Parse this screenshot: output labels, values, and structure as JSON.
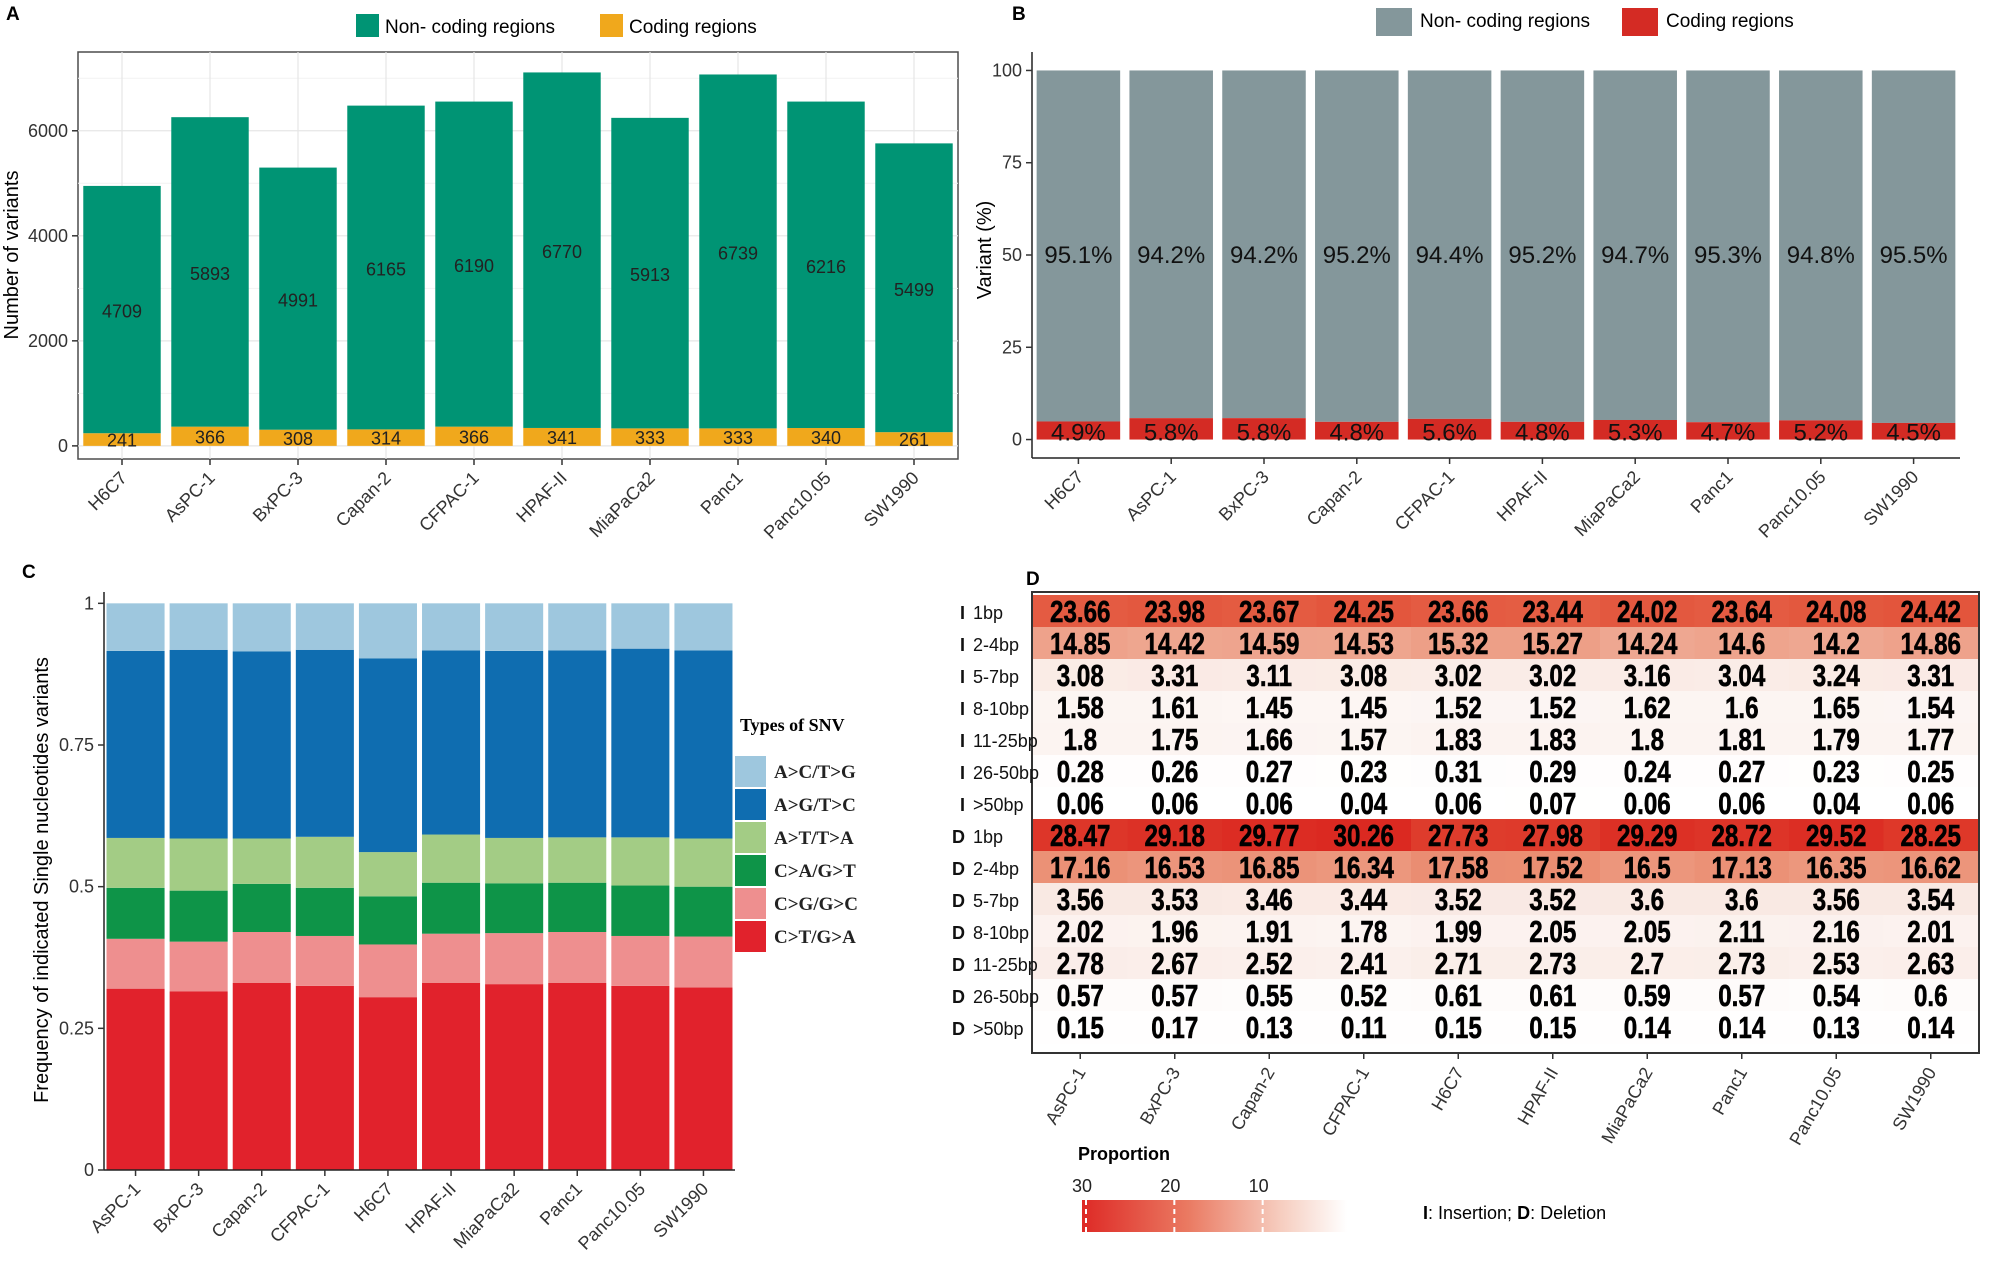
{
  "colors": {
    "noncoding_a": "#009474",
    "coding_a": "#F0A81C",
    "noncoding_b": "#84979B",
    "coding_b": "#D42B24",
    "snv": [
      "#9EC7DE",
      "#0F6DB0",
      "#A3CC85",
      "#0E9448",
      "#EE8F8F",
      "#E1222C"
    ]
  },
  "chart_data": [
    {
      "panel": "A",
      "type": "bar",
      "stacked": true,
      "categories": [
        "H6C7",
        "AsPC-1",
        "BxPC-3",
        "Capan-2",
        "CFPAC-1",
        "HPAF-II",
        "MiaPaCa2",
        "Panc1",
        "Panc10.05",
        "SW1990"
      ],
      "series": [
        {
          "name": "Coding regions",
          "values": [
            241,
            366,
            308,
            314,
            366,
            341,
            333,
            333,
            340,
            261
          ]
        },
        {
          "name": "Non- coding regions",
          "values": [
            4709,
            5893,
            4991,
            6165,
            6190,
            6770,
            5913,
            6739,
            6216,
            5499
          ]
        }
      ],
      "legend": [
        "Non- coding regions",
        "Coding regions"
      ],
      "ylabel": "Number of variants",
      "yticks": [
        0,
        2000,
        4000,
        6000
      ],
      "ylim": [
        -250,
        7500
      ],
      "grid": true,
      "legend_position": "top"
    },
    {
      "panel": "B",
      "type": "bar",
      "stacked": true,
      "percent": true,
      "categories": [
        "H6C7",
        "AsPC-1",
        "BxPC-3",
        "Capan-2",
        "CFPAC-1",
        "HPAF-II",
        "MiaPaCa2",
        "Panc1",
        "Panc10.05",
        "SW1990"
      ],
      "series": [
        {
          "name": "Coding regions",
          "values": [
            4.9,
            5.8,
            5.8,
            4.8,
            5.6,
            4.8,
            5.3,
            4.7,
            5.2,
            4.5
          ]
        },
        {
          "name": "Non- coding regions",
          "values": [
            95.1,
            94.2,
            94.2,
            95.2,
            94.4,
            95.2,
            94.7,
            95.3,
            94.8,
            95.5
          ]
        }
      ],
      "labels_noncoding": [
        "95.1%",
        "94.2%",
        "94.2%",
        "95.2%",
        "94.4%",
        "95.2%",
        "94.7%",
        "95.3%",
        "94.8%",
        "95.5%"
      ],
      "labels_coding": [
        "4.9%",
        "5.8%",
        "5.8%",
        "4.8%",
        "5.6%",
        "4.8%",
        "5.3%",
        "4.7%",
        "5.2%",
        "4.5%"
      ],
      "legend": [
        "Non- coding regions",
        "Coding regions"
      ],
      "ylabel": "Variant (%)",
      "yticks": [
        0,
        25,
        50,
        75,
        100
      ],
      "ylim": [
        -5,
        105
      ],
      "legend_position": "top"
    },
    {
      "panel": "C",
      "type": "bar",
      "stacked": true,
      "categories": [
        "AsPC-1",
        "BxPC-3",
        "Capan-2",
        "CFPAC-1",
        "H6C7",
        "HPAF-II",
        "MiaPaCa2",
        "Panc1",
        "Panc10.05",
        "SW1990"
      ],
      "series": [
        {
          "name": "C>T/G>A",
          "values": [
            0.32,
            0.315,
            0.33,
            0.325,
            0.305,
            0.33,
            0.328,
            0.33,
            0.325,
            0.322
          ]
        },
        {
          "name": "C>G/G>C",
          "values": [
            0.088,
            0.088,
            0.09,
            0.088,
            0.093,
            0.087,
            0.09,
            0.09,
            0.088,
            0.09
          ]
        },
        {
          "name": "C>A/G>T",
          "values": [
            0.09,
            0.09,
            0.085,
            0.085,
            0.085,
            0.09,
            0.088,
            0.087,
            0.089,
            0.088
          ]
        },
        {
          "name": "A>T/T>A",
          "values": [
            0.088,
            0.092,
            0.08,
            0.09,
            0.078,
            0.085,
            0.08,
            0.08,
            0.085,
            0.085
          ]
        },
        {
          "name": "A>G/T>C",
          "values": [
            0.33,
            0.333,
            0.33,
            0.33,
            0.342,
            0.325,
            0.33,
            0.33,
            0.333,
            0.332
          ]
        },
        {
          "name": "A>C/T>G",
          "values": [
            0.084,
            0.082,
            0.085,
            0.082,
            0.097,
            0.083,
            0.084,
            0.083,
            0.08,
            0.083
          ]
        }
      ],
      "legend_title": "Types of SNV",
      "legend": [
        "A>C/T>G",
        "A>G/T>C",
        "A>T/T>A",
        "C>A/G>T",
        "C>G/G>C",
        "C>T/G>A"
      ],
      "ylabel": "Frequency of indicated Single nucleotides variants",
      "yticks": [
        "0",
        "0.25",
        "0.5",
        "0.75",
        "1"
      ],
      "ylim": [
        0,
        1.02
      ],
      "legend_position": "right"
    },
    {
      "panel": "D",
      "type": "heatmap",
      "columns": [
        "AsPC-1",
        "BxPC-3",
        "Capan-2",
        "CFPAC-1",
        "H6C7",
        "HPAF-II",
        "MiaPaCa2",
        "Panc1",
        "Panc10.05",
        "SW1990"
      ],
      "row_types": [
        "I",
        "I",
        "I",
        "I",
        "I",
        "I",
        "I",
        "D",
        "D",
        "D",
        "D",
        "D",
        "D",
        "D"
      ],
      "row_sizes": [
        "1bp",
        "2-4bp",
        "5-7bp",
        "8-10bp",
        "11-25bp",
        "26-50bp",
        ">50bp",
        "1bp",
        "2-4bp",
        "5-7bp",
        "8-10bp",
        "11-25bp",
        "26-50bp",
        ">50bp"
      ],
      "values": [
        [
          23.66,
          23.98,
          23.67,
          24.25,
          23.66,
          23.44,
          24.02,
          23.64,
          24.08,
          24.42
        ],
        [
          14.85,
          14.42,
          14.59,
          14.53,
          15.32,
          15.27,
          14.24,
          14.6,
          14.2,
          14.86
        ],
        [
          3.08,
          3.31,
          3.11,
          3.08,
          3.02,
          3.02,
          3.16,
          3.04,
          3.24,
          3.31
        ],
        [
          1.58,
          1.61,
          1.45,
          1.45,
          1.52,
          1.52,
          1.62,
          1.6,
          1.65,
          1.54
        ],
        [
          1.8,
          1.75,
          1.66,
          1.57,
          1.83,
          1.83,
          1.8,
          1.81,
          1.79,
          1.77
        ],
        [
          0.28,
          0.26,
          0.27,
          0.23,
          0.31,
          0.29,
          0.24,
          0.27,
          0.23,
          0.25
        ],
        [
          0.06,
          0.06,
          0.06,
          0.04,
          0.06,
          0.07,
          0.06,
          0.06,
          0.04,
          0.06
        ],
        [
          28.47,
          29.18,
          29.77,
          30.26,
          27.73,
          27.98,
          29.29,
          28.72,
          29.52,
          28.25
        ],
        [
          17.16,
          16.53,
          16.85,
          16.34,
          17.58,
          17.52,
          16.5,
          17.13,
          16.35,
          16.62
        ],
        [
          3.56,
          3.53,
          3.46,
          3.44,
          3.52,
          3.52,
          3.6,
          3.6,
          3.56,
          3.54
        ],
        [
          2.02,
          1.96,
          1.91,
          1.78,
          1.99,
          2.05,
          2.05,
          2.11,
          2.16,
          2.01
        ],
        [
          2.78,
          2.67,
          2.52,
          2.41,
          2.71,
          2.73,
          2.7,
          2.73,
          2.53,
          2.63
        ],
        [
          0.57,
          0.57,
          0.55,
          0.52,
          0.61,
          0.61,
          0.59,
          0.57,
          0.54,
          0.6
        ],
        [
          0.15,
          0.17,
          0.13,
          0.11,
          0.15,
          0.15,
          0.14,
          0.14,
          0.13,
          0.14
        ]
      ],
      "colorbar_title": "Proportion",
      "colorbar_ticks": [
        "30",
        "20",
        "10"
      ],
      "footnote_i": "I",
      "footnote_i_text": ": Insertion; ",
      "footnote_d": "D",
      "footnote_d_text": ": Deletion"
    }
  ],
  "panels": {
    "a": "A",
    "b": "B",
    "c": "C",
    "d": "D"
  }
}
